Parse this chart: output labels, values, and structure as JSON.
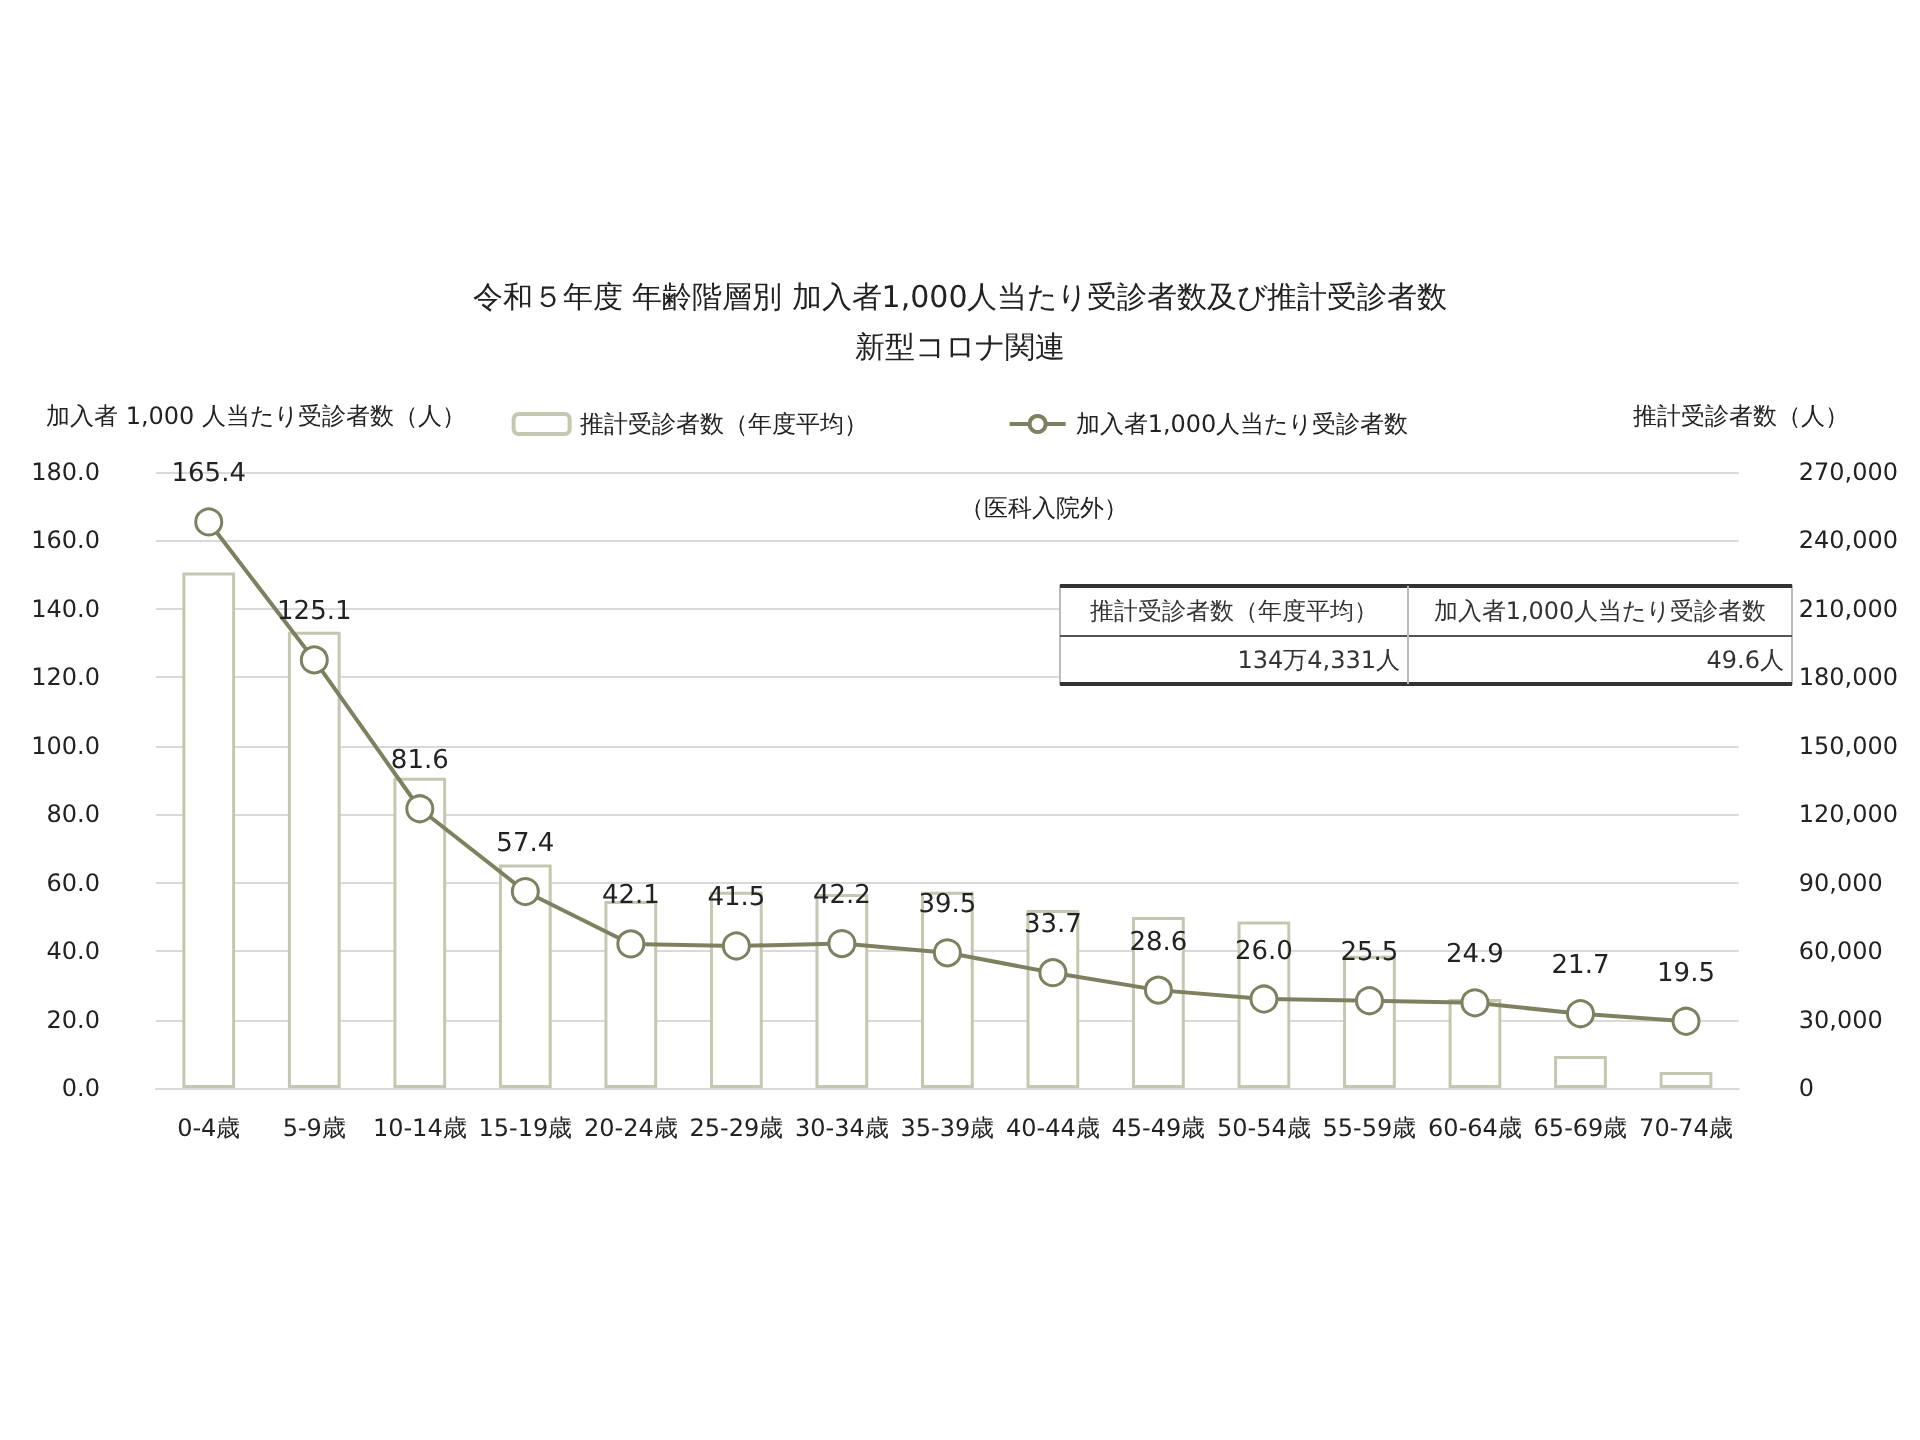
{
  "chart_data": {
    "type": "bar",
    "title": "令和５年度 年齢階層別 加入者1,000人当たり受診者数及び推計受診者数",
    "subtitle": "新型コロナ関連",
    "ylabel": "加入者 1,000 人当たり受診者数（人）",
    "y2label": "推計受診者数（人）",
    "categories": [
      "0-4歳",
      "5-9歳",
      "10-14歳",
      "15-19歳",
      "20-24歳",
      "25-29歳",
      "30-34歳",
      "35-39歳",
      "40-44歳",
      "45-49歳",
      "50-54歳",
      "55-59歳",
      "60-64歳",
      "65-69歳",
      "70-74歳"
    ],
    "series": [
      {
        "name": "推計受診者数（年度平均）",
        "axis": "y2",
        "color": "#c5c7b0",
        "values": [
          226000,
          200000,
          136000,
          98000,
          82000,
          86000,
          85000,
          86000,
          78000,
          75000,
          73000,
          58000,
          39000,
          14000,
          7000
        ]
      },
      {
        "name": "加入者1,000人当たり受診者数",
        "type": "line",
        "axis": "y",
        "color": "#7f8060",
        "marker": "circle",
        "values": [
          165.4,
          125.1,
          81.6,
          57.4,
          42.1,
          41.5,
          42.2,
          39.5,
          33.7,
          28.6,
          26.0,
          25.5,
          24.9,
          21.7,
          19.5
        ],
        "value_labels": [
          "165.4",
          "125.1",
          "81.6",
          "57.4",
          "42.1",
          "41.5",
          "42.2",
          "39.5",
          "33.7",
          "28.6",
          "26.0",
          "25.5",
          "24.9",
          "21.7",
          "19.5"
        ]
      }
    ],
    "ylim": [
      0,
      180
    ],
    "yticks": [
      {
        "value": 0,
        "label": "0.0"
      },
      {
        "value": 20,
        "label": "20.0"
      },
      {
        "value": 40,
        "label": "40.0"
      },
      {
        "value": 60,
        "label": "60.0"
      },
      {
        "value": 80,
        "label": "80.0"
      },
      {
        "value": 100,
        "label": "100.0"
      },
      {
        "value": 120,
        "label": "120.0"
      },
      {
        "value": 140,
        "label": "140.0"
      },
      {
        "value": 160,
        "label": "160.0"
      },
      {
        "value": 180,
        "label": "180.0"
      }
    ],
    "y2lim": [
      0,
      270000
    ],
    "y2ticks": [
      0,
      {
        "value": 30000,
        "label": "30,000"
      },
      {
        "value": 60000,
        "label": "60,000"
      },
      {
        "value": 90000,
        "label": "90,000"
      },
      {
        "value": 120000,
        "label": "120,000"
      },
      {
        "value": 150000,
        "label": "150,000"
      },
      {
        "value": 180000,
        "label": "180,000"
      },
      {
        "value": 210000,
        "label": "210,000"
      },
      {
        "value": 240000,
        "label": "240,000"
      },
      {
        "value": 270000,
        "label": "270,000"
      }
    ],
    "grid": "y",
    "legend": "top",
    "annotations": [
      "（医科入院外）",
      "推計受診者数（年度平均）",
      "加入者1,000人当たり受診者数",
      "134万4,331人",
      "49.6人"
    ]
  }
}
